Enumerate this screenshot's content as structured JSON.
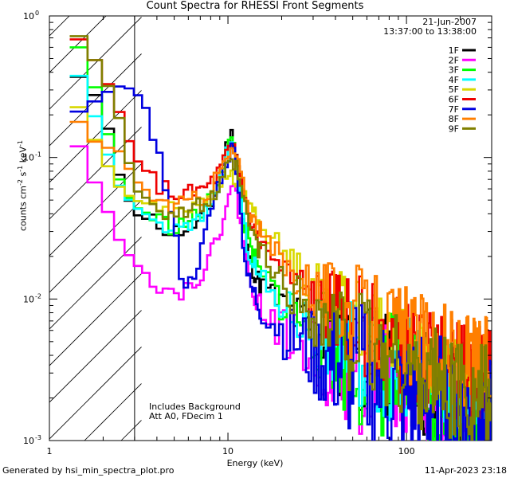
{
  "chart_data": {
    "type": "line",
    "title": "Count Spectra for RHESSI Front Segments",
    "xlabel": "Energy (keV)",
    "ylabel": "counts cm-2 s-1 keV-1",
    "ylabel_parts": {
      "pre": "counts cm",
      "exp1": "-2",
      "mid1": " s",
      "exp2": "-1",
      "mid2": " keV",
      "exp3": "-1"
    },
    "xscale": "log",
    "yscale": "log",
    "xlim": [
      1,
      300
    ],
    "ylim": [
      0.001,
      1
    ],
    "xticks": [
      {
        "value": 1,
        "label": "1"
      },
      {
        "value": 10,
        "label": "10"
      },
      {
        "value": 100,
        "label": "100"
      }
    ],
    "yticks": [
      {
        "value": 1,
        "label": "10",
        "exp": "0"
      },
      {
        "value": 0.1,
        "label": "10",
        "exp": "-1"
      },
      {
        "value": 0.01,
        "label": "10",
        "exp": "-2"
      },
      {
        "value": 0.001,
        "label": "10",
        "exp": "-3"
      }
    ],
    "threshold_keV": 3,
    "date": "21-Jun-2007",
    "time_range": "13:37:00 to 13:38:00",
    "annotations": [
      "Includes Background",
      "Att A0, FDecim 1"
    ],
    "legend_position": "top-right",
    "series": [
      {
        "name": "1F",
        "color": "#000000",
        "seed": 11,
        "noise": 0.9,
        "bg": 0.0016,
        "points": [
          [
            1.3,
            0.4
          ],
          [
            1.6,
            0.35
          ],
          [
            2,
            0.22
          ],
          [
            2.5,
            0.07
          ],
          [
            3,
            0.04
          ],
          [
            4,
            0.034
          ],
          [
            5,
            0.03
          ],
          [
            6,
            0.032
          ],
          [
            7,
            0.035
          ],
          [
            8,
            0.045
          ],
          [
            9,
            0.07
          ],
          [
            10,
            0.13
          ],
          [
            10.7,
            0.15
          ],
          [
            11.3,
            0.1
          ],
          [
            12,
            0.04
          ],
          [
            13,
            0.02
          ],
          [
            15,
            0.013
          ],
          [
            20,
            0.009
          ],
          [
            30,
            0.006
          ],
          [
            50,
            0.004
          ],
          [
            100,
            0.0028
          ],
          [
            200,
            0.002
          ],
          [
            290,
            0.0018
          ]
        ]
      },
      {
        "name": "2F",
        "color": "#ff00ff",
        "seed": 22,
        "noise": 1.0,
        "bg": 0.0012,
        "points": [
          [
            1.3,
            0.17
          ],
          [
            1.6,
            0.09
          ],
          [
            2,
            0.05
          ],
          [
            2.5,
            0.025
          ],
          [
            3,
            0.018
          ],
          [
            4,
            0.013
          ],
          [
            5,
            0.011
          ],
          [
            6,
            0.012
          ],
          [
            7,
            0.015
          ],
          [
            8,
            0.02
          ],
          [
            9,
            0.03
          ],
          [
            10,
            0.055
          ],
          [
            11,
            0.06
          ],
          [
            12,
            0.03
          ],
          [
            13,
            0.015
          ],
          [
            15,
            0.009
          ],
          [
            20,
            0.006
          ],
          [
            30,
            0.004
          ],
          [
            50,
            0.003
          ],
          [
            100,
            0.0022
          ],
          [
            200,
            0.0015
          ],
          [
            290,
            0.0014
          ]
        ]
      },
      {
        "name": "3F",
        "color": "#00ff00",
        "seed": 33,
        "noise": 1.1,
        "bg": 0.0012,
        "points": [
          [
            1.3,
            0.75
          ],
          [
            1.6,
            0.5
          ],
          [
            2,
            0.2
          ],
          [
            2.5,
            0.065
          ],
          [
            3,
            0.045
          ],
          [
            4,
            0.037
          ],
          [
            5,
            0.032
          ],
          [
            6,
            0.035
          ],
          [
            7,
            0.04
          ],
          [
            8,
            0.05
          ],
          [
            9,
            0.075
          ],
          [
            10,
            0.12
          ],
          [
            10.7,
            0.13
          ],
          [
            11.3,
            0.1
          ],
          [
            12,
            0.045
          ],
          [
            13,
            0.024
          ],
          [
            15,
            0.015
          ],
          [
            20,
            0.01
          ],
          [
            30,
            0.006
          ],
          [
            50,
            0.004
          ],
          [
            100,
            0.0026
          ],
          [
            200,
            0.0018
          ],
          [
            290,
            0.0016
          ]
        ]
      },
      {
        "name": "4F",
        "color": "#00ffff",
        "seed": 44,
        "noise": 0.9,
        "bg": 0.0015,
        "points": [
          [
            1.3,
            0.5
          ],
          [
            1.6,
            0.3
          ],
          [
            2,
            0.13
          ],
          [
            2.5,
            0.06
          ],
          [
            3,
            0.045
          ],
          [
            4,
            0.035
          ],
          [
            5,
            0.03
          ],
          [
            6,
            0.032
          ],
          [
            7,
            0.036
          ],
          [
            8,
            0.045
          ],
          [
            9,
            0.07
          ],
          [
            10,
            0.11
          ],
          [
            10.7,
            0.12
          ],
          [
            11.3,
            0.09
          ],
          [
            12,
            0.04
          ],
          [
            13,
            0.022
          ],
          [
            15,
            0.014
          ],
          [
            20,
            0.009
          ],
          [
            30,
            0.006
          ],
          [
            50,
            0.0045
          ],
          [
            100,
            0.003
          ],
          [
            200,
            0.0022
          ],
          [
            290,
            0.002
          ]
        ]
      },
      {
        "name": "5F",
        "color": "#d8d800",
        "seed": 55,
        "noise": 0.6,
        "bg": 0.0018,
        "points": [
          [
            1.3,
            0.3
          ],
          [
            1.6,
            0.18
          ],
          [
            2,
            0.1
          ],
          [
            2.5,
            0.06
          ],
          [
            3,
            0.05
          ],
          [
            4,
            0.045
          ],
          [
            5,
            0.043
          ],
          [
            6,
            0.045
          ],
          [
            7,
            0.05
          ],
          [
            8,
            0.056
          ],
          [
            9,
            0.065
          ],
          [
            10,
            0.075
          ],
          [
            11,
            0.072
          ],
          [
            12,
            0.06
          ],
          [
            13,
            0.05
          ],
          [
            15,
            0.035
          ],
          [
            20,
            0.022
          ],
          [
            30,
            0.013
          ],
          [
            50,
            0.008
          ],
          [
            100,
            0.0045
          ],
          [
            200,
            0.003
          ],
          [
            290,
            0.0028
          ]
        ]
      },
      {
        "name": "6F",
        "color": "#ee0000",
        "seed": 66,
        "noise": 0.8,
        "bg": 0.0022,
        "points": [
          [
            1.3,
            0.8
          ],
          [
            1.6,
            0.6
          ],
          [
            2,
            0.4
          ],
          [
            2.5,
            0.2
          ],
          [
            3,
            0.1
          ],
          [
            4,
            0.065
          ],
          [
            5,
            0.055
          ],
          [
            6,
            0.055
          ],
          [
            7,
            0.058
          ],
          [
            8,
            0.065
          ],
          [
            9,
            0.08
          ],
          [
            10,
            0.11
          ],
          [
            11,
            0.11
          ],
          [
            12,
            0.065
          ],
          [
            13,
            0.04
          ],
          [
            15,
            0.025
          ],
          [
            20,
            0.016
          ],
          [
            30,
            0.01
          ],
          [
            50,
            0.007
          ],
          [
            100,
            0.0045
          ],
          [
            200,
            0.003
          ],
          [
            290,
            0.0028
          ]
        ]
      },
      {
        "name": "7F",
        "color": "#0000e0",
        "seed": 77,
        "noise": 1.2,
        "bg": 0.0012,
        "points": [
          [
            1.3,
            0.2
          ],
          [
            1.6,
            0.22
          ],
          [
            2,
            0.28
          ],
          [
            2.5,
            0.32
          ],
          [
            3,
            0.3
          ],
          [
            3.5,
            0.22
          ],
          [
            4,
            0.12
          ],
          [
            4.5,
            0.06
          ],
          [
            5,
            0.03
          ],
          [
            5.5,
            0.015
          ],
          [
            6,
            0.012
          ],
          [
            7,
            0.02
          ],
          [
            8,
            0.04
          ],
          [
            9,
            0.07
          ],
          [
            10,
            0.1
          ],
          [
            10.7,
            0.12
          ],
          [
            11.3,
            0.08
          ],
          [
            12,
            0.03
          ],
          [
            13,
            0.013
          ],
          [
            15,
            0.009
          ],
          [
            20,
            0.006
          ],
          [
            30,
            0.004
          ],
          [
            50,
            0.003
          ],
          [
            100,
            0.002
          ],
          [
            200,
            0.0015
          ],
          [
            290,
            0.0014
          ]
        ]
      },
      {
        "name": "8F",
        "color": "#ff7f00",
        "seed": 88,
        "noise": 0.8,
        "bg": 0.0022,
        "points": [
          [
            1.3,
            0.24
          ],
          [
            1.6,
            0.14
          ],
          [
            2,
            0.12
          ],
          [
            2.5,
            0.11
          ],
          [
            3,
            0.07
          ],
          [
            4,
            0.05
          ],
          [
            5,
            0.045
          ],
          [
            6,
            0.048
          ],
          [
            7,
            0.052
          ],
          [
            8,
            0.06
          ],
          [
            9,
            0.08
          ],
          [
            10,
            0.1
          ],
          [
            11,
            0.11
          ],
          [
            12,
            0.07
          ],
          [
            13,
            0.045
          ],
          [
            15,
            0.03
          ],
          [
            20,
            0.018
          ],
          [
            30,
            0.012
          ],
          [
            50,
            0.008
          ],
          [
            100,
            0.0055
          ],
          [
            200,
            0.0038
          ],
          [
            290,
            0.0034
          ]
        ]
      },
      {
        "name": "9F",
        "color": "#808000",
        "seed": 99,
        "noise": 0.9,
        "bg": 0.0016,
        "points": [
          [
            1.3,
            0.9
          ],
          [
            1.6,
            0.6
          ],
          [
            2,
            0.4
          ],
          [
            2.5,
            0.18
          ],
          [
            3,
            0.06
          ],
          [
            4,
            0.045
          ],
          [
            5,
            0.04
          ],
          [
            6,
            0.042
          ],
          [
            7,
            0.045
          ],
          [
            8,
            0.05
          ],
          [
            9,
            0.06
          ],
          [
            10,
            0.085
          ],
          [
            11,
            0.09
          ],
          [
            12,
            0.055
          ],
          [
            13,
            0.035
          ],
          [
            15,
            0.022
          ],
          [
            20,
            0.013
          ],
          [
            30,
            0.008
          ],
          [
            50,
            0.005
          ],
          [
            100,
            0.0032
          ],
          [
            200,
            0.0022
          ],
          [
            290,
            0.002
          ]
        ]
      }
    ]
  },
  "footer": {
    "generated_by": "Generated by hsi_min_spectra_plot.pro",
    "timestamp": "11-Apr-2023 23:18"
  }
}
